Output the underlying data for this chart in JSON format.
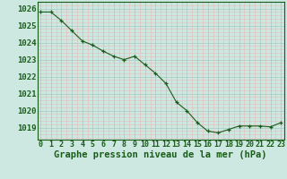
{
  "hours": [
    0,
    1,
    2,
    3,
    4,
    5,
    6,
    7,
    8,
    9,
    10,
    11,
    12,
    13,
    14,
    15,
    16,
    17,
    18,
    19,
    20,
    21,
    22,
    23
  ],
  "pressure": [
    1025.8,
    1025.8,
    1025.3,
    1024.7,
    1024.1,
    1023.85,
    1023.5,
    1023.2,
    1023.0,
    1023.2,
    1022.7,
    1022.2,
    1021.6,
    1020.5,
    1020.0,
    1019.3,
    1018.8,
    1018.7,
    1018.9,
    1019.1,
    1019.1,
    1019.1,
    1019.05,
    1019.3
  ],
  "ylabel_ticks": [
    1019,
    1020,
    1021,
    1022,
    1023,
    1024,
    1025,
    1026
  ],
  "xlabel": "Graphe pression niveau de la mer (hPa)",
  "ylim": [
    1018.3,
    1026.4
  ],
  "xlim": [
    -0.3,
    23.3
  ],
  "line_color": "#1a5c1a",
  "marker_color": "#1a5c1a",
  "bg_color": "#cce8e0",
  "grid_major_color": "#aac8c0",
  "grid_minor_color": "#e8b8b8",
  "xlabel_fontsize": 7.5,
  "ytick_fontsize": 6.5,
  "xtick_fontsize": 6.0
}
